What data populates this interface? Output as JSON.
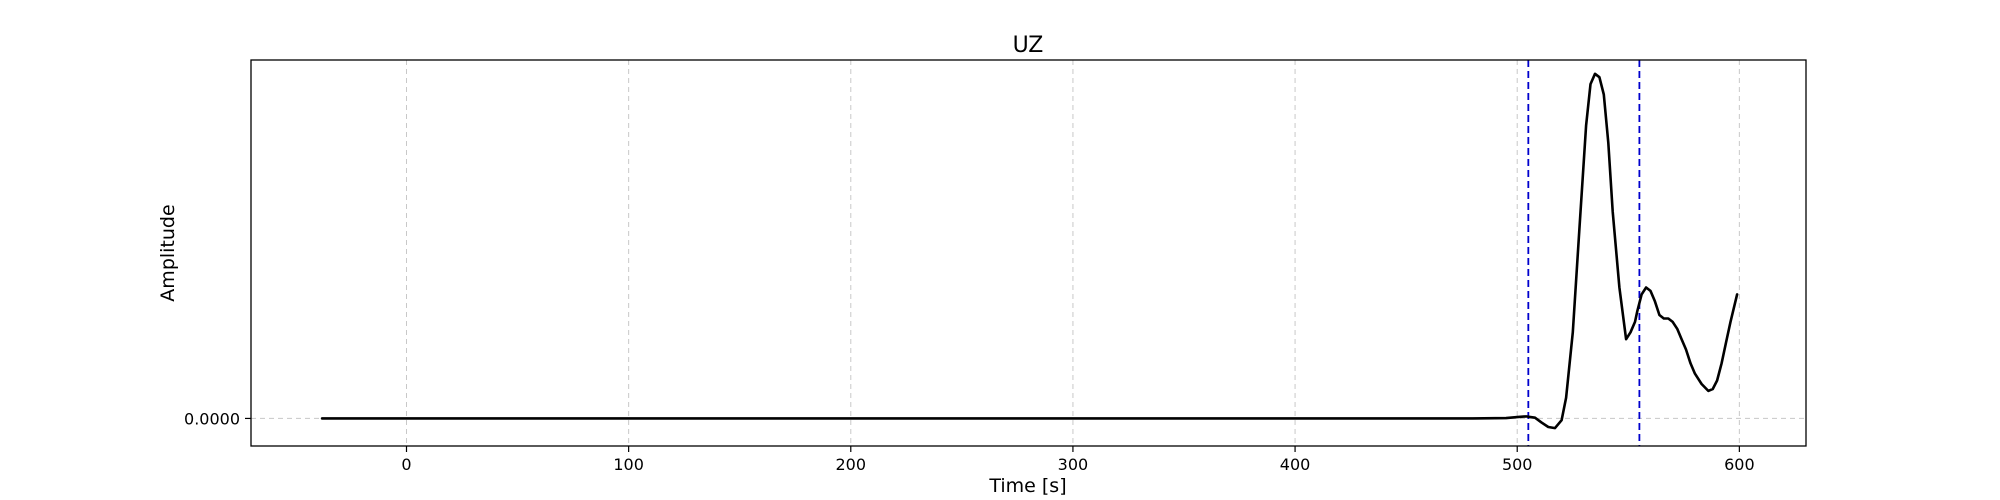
{
  "chart_data": {
    "type": "line",
    "title": "UZ",
    "xlabel": "Time [s]",
    "ylabel": "Amplitude",
    "xlim": [
      -70,
      630
    ],
    "ylim": [
      -0.08,
      1.04
    ],
    "x_ticks": [
      0,
      100,
      200,
      300,
      400,
      500,
      600
    ],
    "y_ticks": [
      {
        "value": 0,
        "label": "0.0000"
      }
    ],
    "grid": true,
    "grid_style": "dashed",
    "line_color": "#000000",
    "markers": [
      {
        "x": 505,
        "color": "#0000cc",
        "style": "dashed"
      },
      {
        "x": 555,
        "color": "#0000cc",
        "style": "dashed"
      }
    ],
    "series": [
      {
        "x": [
          -38,
          0,
          100,
          200,
          300,
          400,
          480,
          495,
          500,
          504,
          508,
          511,
          514,
          517,
          520,
          522,
          525,
          528,
          531,
          533,
          535,
          537,
          539,
          541,
          543,
          546,
          549,
          551,
          553,
          554,
          556,
          558,
          560,
          562,
          564,
          566,
          568,
          570,
          572,
          574,
          576,
          578,
          580,
          583,
          586,
          588,
          590,
          592,
          594,
          596,
          599
        ],
        "y": [
          0,
          0,
          0,
          0,
          0,
          0,
          0,
          0.001,
          0.004,
          0.006,
          0.002,
          -0.012,
          -0.025,
          -0.028,
          -0.005,
          0.06,
          0.25,
          0.55,
          0.85,
          0.97,
          1.0,
          0.99,
          0.94,
          0.8,
          0.6,
          0.38,
          0.23,
          0.25,
          0.28,
          0.31,
          0.36,
          0.38,
          0.37,
          0.34,
          0.3,
          0.29,
          0.29,
          0.28,
          0.26,
          0.23,
          0.2,
          0.16,
          0.13,
          0.1,
          0.08,
          0.085,
          0.11,
          0.16,
          0.22,
          0.28,
          0.36
        ]
      }
    ]
  }
}
